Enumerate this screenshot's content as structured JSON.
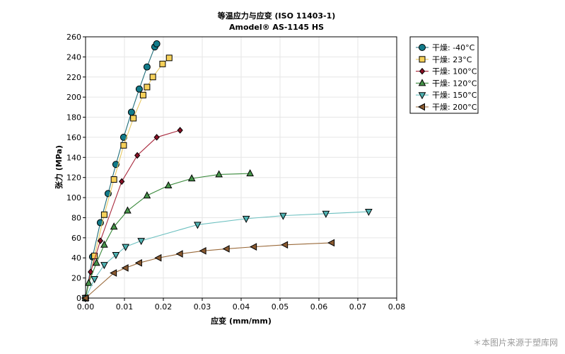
{
  "chart_data": {
    "type": "line",
    "title": "等温应力与应变 (ISO 11403-1)",
    "subtitle": "Amodel® AS-1145 HS",
    "xlabel": "应变 (mm/mm)",
    "ylabel": "张力 (MPa)",
    "xlim": [
      0,
      0.08
    ],
    "ylim": [
      0,
      260
    ],
    "xticks": [
      "0.00",
      "0.01",
      "0.02",
      "0.03",
      "0.04",
      "0.05",
      "0.06",
      "0.07",
      "0.08"
    ],
    "yticks": [
      "0",
      "20",
      "40",
      "60",
      "80",
      "100",
      "120",
      "140",
      "160",
      "180",
      "200",
      "220",
      "240",
      "260"
    ],
    "grid": true,
    "legend_position": "right-top",
    "series": [
      {
        "name": "干燥: -40°C",
        "marker": "circle",
        "line_color": "#1f6e7a",
        "fill": "#127b8a",
        "points": [
          [
            0,
            0
          ],
          [
            0.0018,
            41
          ],
          [
            0.0038,
            75
          ],
          [
            0.0058,
            104
          ],
          [
            0.0078,
            133
          ],
          [
            0.0098,
            160
          ],
          [
            0.0118,
            185
          ],
          [
            0.0138,
            208
          ],
          [
            0.0158,
            230
          ],
          [
            0.0178,
            250
          ],
          [
            0.0183,
            253
          ]
        ]
      },
      {
        "name": "干燥: 23°C",
        "marker": "square",
        "line_color": "#e8c860",
        "fill": "#f6d15a",
        "points": [
          [
            0,
            0
          ],
          [
            0.0023,
            42
          ],
          [
            0.0048,
            83
          ],
          [
            0.0073,
            118
          ],
          [
            0.0098,
            152
          ],
          [
            0.0123,
            179
          ],
          [
            0.0148,
            202
          ],
          [
            0.0158,
            210
          ],
          [
            0.0173,
            220
          ],
          [
            0.0198,
            233
          ],
          [
            0.0215,
            239
          ]
        ]
      },
      {
        "name": "干燥: 100°C",
        "marker": "diamond",
        "line_color": "#a8283c",
        "fill": "#8a0f25",
        "points": [
          [
            0,
            0
          ],
          [
            0.0013,
            26
          ],
          [
            0.0038,
            57
          ],
          [
            0.0093,
            116
          ],
          [
            0.0133,
            142
          ],
          [
            0.0183,
            160
          ],
          [
            0.0243,
            167
          ]
        ]
      },
      {
        "name": "干燥: 120°C",
        "marker": "triangle-up",
        "line_color": "#3a8a3c",
        "fill": "#47944a",
        "points": [
          [
            0,
            0
          ],
          [
            0.0008,
            15
          ],
          [
            0.0028,
            35
          ],
          [
            0.0048,
            53
          ],
          [
            0.0073,
            71
          ],
          [
            0.0108,
            87
          ],
          [
            0.0158,
            102
          ],
          [
            0.0213,
            112
          ],
          [
            0.0273,
            119
          ],
          [
            0.0343,
            123
          ],
          [
            0.0423,
            124
          ]
        ]
      },
      {
        "name": "干燥: 150°C",
        "marker": "triangle-down",
        "line_color": "#6cc0c0",
        "fill": "#4fb3b3",
        "points": [
          [
            0,
            0
          ],
          [
            0.0023,
            19
          ],
          [
            0.0048,
            33
          ],
          [
            0.0078,
            43
          ],
          [
            0.0103,
            51
          ],
          [
            0.0143,
            57
          ],
          [
            0.0288,
            73
          ],
          [
            0.0413,
            79
          ],
          [
            0.0508,
            82
          ],
          [
            0.0618,
            84
          ],
          [
            0.0728,
            86
          ]
        ]
      },
      {
        "name": "干燥: 200°C",
        "marker": "triangle-left",
        "line_color": "#9a6a3a",
        "fill": "#8a5a30",
        "points": [
          [
            0,
            0
          ],
          [
            0.0073,
            25
          ],
          [
            0.0103,
            30
          ],
          [
            0.0138,
            35
          ],
          [
            0.0188,
            40
          ],
          [
            0.0243,
            44
          ],
          [
            0.0303,
            47
          ],
          [
            0.0363,
            49
          ],
          [
            0.0433,
            51
          ],
          [
            0.0513,
            53
          ],
          [
            0.0633,
            55
          ]
        ]
      }
    ]
  },
  "watermark": "＊本图片来源于塑库网"
}
